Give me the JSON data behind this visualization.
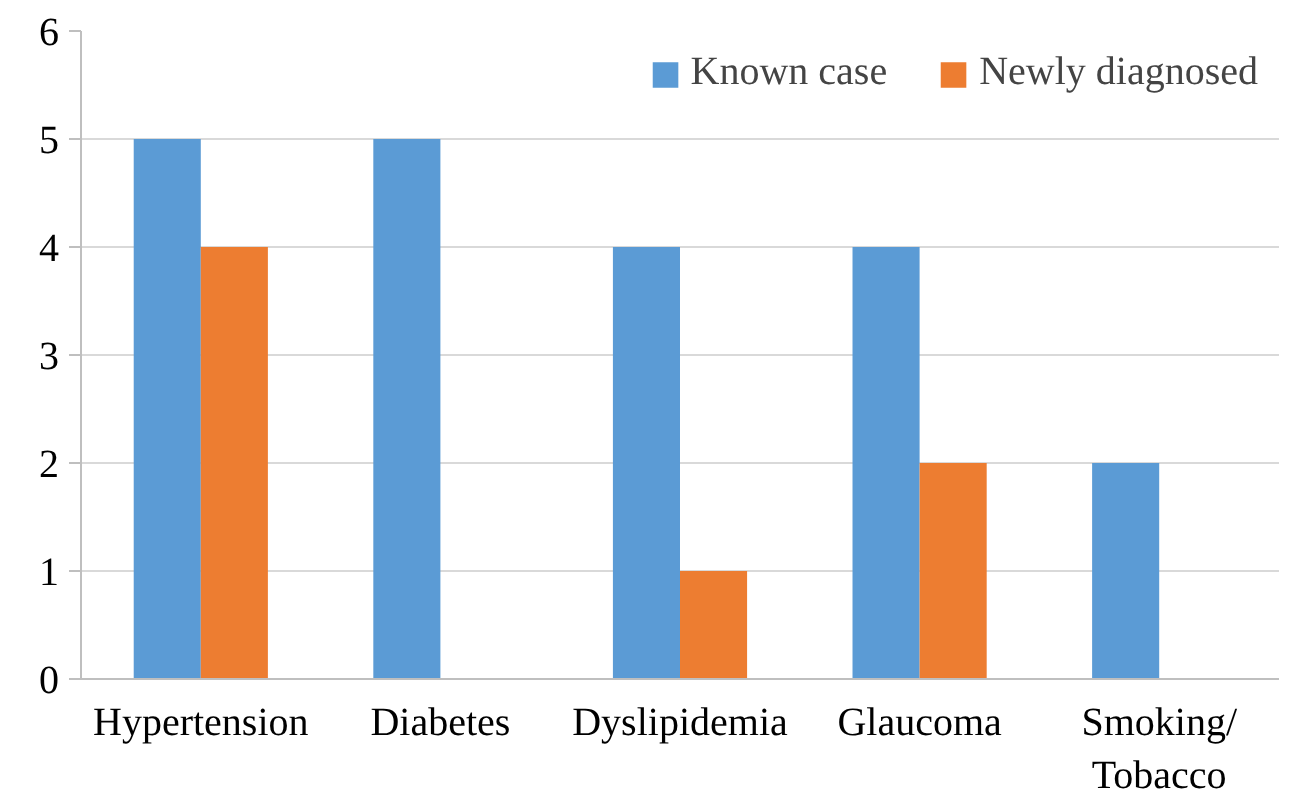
{
  "chart_data": {
    "type": "bar",
    "categories": [
      "Hypertension",
      "Diabetes",
      "Dyslipidemia",
      "Glaucoma",
      "Smoking/\nTobacco"
    ],
    "series": [
      {
        "name": "Known case",
        "color": "#5b9bd5",
        "values": [
          5,
          5,
          4,
          4,
          2
        ]
      },
      {
        "name": "Newly diagnosed",
        "color": "#ed7d31",
        "values": [
          4,
          0,
          1,
          2,
          0
        ]
      }
    ],
    "ylim": [
      0,
      6
    ],
    "yticks": [
      0,
      1,
      2,
      3,
      4,
      5,
      6
    ],
    "grid": "y",
    "legend": "top right"
  }
}
